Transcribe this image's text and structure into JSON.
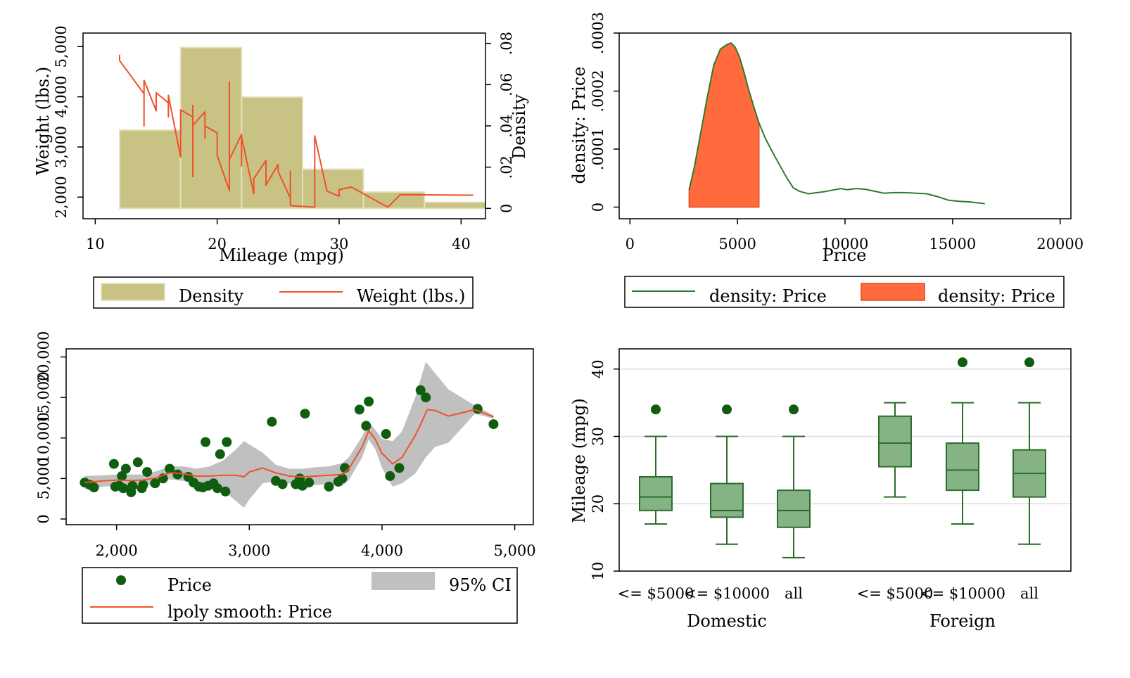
{
  "colors": {
    "hist_fill": "#c8c285",
    "hist_stroke": "#e5e1bd",
    "weight_line": "#f0502a",
    "density_line": "#2d7a2d",
    "density_fill": "#ff6b3d",
    "scatter_point": "#0f5e0f",
    "ci_fill": "#c0c0c0",
    "lpoly_line": "#f0502a",
    "box_fill": "#86b386",
    "box_stroke": "#2a6e2a",
    "grid": "#dedede"
  },
  "chart_data": [
    {
      "id": "hist-weight",
      "type": "bar",
      "xlabel": "Mileage (mpg)",
      "ylabel": "Weight (lbs.)",
      "y2label": "Density",
      "xlim": [
        9,
        42
      ],
      "xticks": [
        {
          "v": 10,
          "l": "10"
        },
        {
          "v": 20,
          "l": "20"
        },
        {
          "v": 30,
          "l": "30"
        },
        {
          "v": 40,
          "l": "40"
        }
      ],
      "ylim": [
        1570,
        5270
      ],
      "yticks": [
        {
          "v": 2000,
          "l": "2,000"
        },
        {
          "v": 3000,
          "l": "3,000"
        },
        {
          "v": 4000,
          "l": "4,000"
        },
        {
          "v": 5000,
          "l": "5,000"
        }
      ],
      "y2lim": [
        -0.005,
        0.085
      ],
      "y2ticks": [
        {
          "v": 0,
          "l": "0"
        },
        {
          "v": 0.02,
          "l": ".02"
        },
        {
          "v": 0.04,
          "l": ".04"
        },
        {
          "v": 0.06,
          "l": ".06"
        },
        {
          "v": 0.08,
          "l": ".08"
        }
      ],
      "bins": [
        {
          "x0": 12,
          "x1": 17,
          "density": 0.038
        },
        {
          "x0": 17,
          "x1": 22,
          "density": 0.078
        },
        {
          "x0": 22,
          "x1": 27,
          "density": 0.054
        },
        {
          "x0": 27,
          "x1": 32,
          "density": 0.019
        },
        {
          "x0": 32,
          "x1": 37,
          "density": 0.008
        },
        {
          "x0": 37,
          "x1": 42,
          "density": 0.003
        }
      ],
      "weight_line": {
        "name": "Weight (lbs.)",
        "points": [
          [
            12,
            4840
          ],
          [
            12,
            4720
          ],
          [
            14,
            4060
          ],
          [
            14,
            3420
          ],
          [
            14,
            4330
          ],
          [
            15,
            3720
          ],
          [
            15,
            4080
          ],
          [
            16,
            3880
          ],
          [
            16,
            3600
          ],
          [
            16,
            4030
          ],
          [
            17,
            2800
          ],
          [
            17,
            3740
          ],
          [
            18,
            3600
          ],
          [
            18,
            3830
          ],
          [
            18,
            3670
          ],
          [
            18,
            2410
          ],
          [
            18,
            3430
          ],
          [
            19,
            3700
          ],
          [
            19,
            3170
          ],
          [
            19,
            3420
          ],
          [
            20,
            3280
          ],
          [
            20,
            2830
          ],
          [
            21,
            2130
          ],
          [
            21,
            4290
          ],
          [
            21,
            2750
          ],
          [
            22,
            3250
          ],
          [
            22,
            2620
          ],
          [
            22,
            3200
          ],
          [
            23,
            2070
          ],
          [
            23,
            2370
          ],
          [
            24,
            2730
          ],
          [
            24,
            2610
          ],
          [
            24,
            2240
          ],
          [
            25,
            2650
          ],
          [
            25,
            2510
          ],
          [
            26,
            1980
          ],
          [
            26,
            2520
          ],
          [
            26,
            1830
          ],
          [
            28,
            1800
          ],
          [
            28,
            3220
          ],
          [
            29,
            2120
          ],
          [
            30,
            2020
          ],
          [
            30,
            2150
          ],
          [
            31,
            2200
          ],
          [
            34,
            1800
          ],
          [
            35,
            2050
          ],
          [
            41,
            2040
          ]
        ]
      },
      "legend": [
        {
          "key": "hist",
          "label": "Density"
        },
        {
          "key": "line",
          "label": "Weight (lbs.)"
        }
      ]
    },
    {
      "id": "kdensity-price",
      "type": "area",
      "xlabel": "Price",
      "ylabel": "density: Price",
      "xlim": [
        -500,
        20500
      ],
      "xticks": [
        {
          "v": 0,
          "l": "0"
        },
        {
          "v": 5000,
          "l": "5000"
        },
        {
          "v": 10000,
          "l": "10000"
        },
        {
          "v": 15000,
          "l": "15000"
        },
        {
          "v": 20000,
          "l": "20000"
        }
      ],
      "ylim": [
        -2e-05,
        0.0003
      ],
      "yticks": [
        {
          "v": 0,
          "l": "0"
        },
        {
          "v": 0.0001,
          "l": ".0001"
        },
        {
          "v": 0.0002,
          "l": ".0002"
        },
        {
          "v": 0.0003,
          "l": ".0003"
        }
      ],
      "shade_range": [
        2750,
        6000
      ],
      "curve": [
        [
          2750,
          3e-05
        ],
        [
          3000,
          7e-05
        ],
        [
          3300,
          0.00013
        ],
        [
          3600,
          0.00019
        ],
        [
          3900,
          0.000245
        ],
        [
          4200,
          0.000272
        ],
        [
          4500,
          0.00028
        ],
        [
          4700,
          0.000283
        ],
        [
          4900,
          0.000275
        ],
        [
          5100,
          0.000258
        ],
        [
          5300,
          0.000233
        ],
        [
          5500,
          0.000205
        ],
        [
          5800,
          0.000168
        ],
        [
          6000,
          0.000145
        ],
        [
          6300,
          0.000118
        ],
        [
          6700,
          9e-05
        ],
        [
          7000,
          7e-05
        ],
        [
          7300,
          5e-05
        ],
        [
          7600,
          3.3e-05
        ],
        [
          7900,
          2.7e-05
        ],
        [
          8300,
          2.3e-05
        ],
        [
          8700,
          2.5e-05
        ],
        [
          9100,
          2.7e-05
        ],
        [
          9500,
          3e-05
        ],
        [
          9800,
          3.2e-05
        ],
        [
          10100,
          3e-05
        ],
        [
          10500,
          3.2e-05
        ],
        [
          10900,
          3.1e-05
        ],
        [
          11300,
          2.8e-05
        ],
        [
          11800,
          2.4e-05
        ],
        [
          12300,
          2.5e-05
        ],
        [
          12800,
          2.5e-05
        ],
        [
          13300,
          2.4e-05
        ],
        [
          13800,
          2.3e-05
        ],
        [
          14300,
          1.8e-05
        ],
        [
          14800,
          1.2e-05
        ],
        [
          15300,
          1e-05
        ],
        [
          15800,
          9e-06
        ],
        [
          16500,
          6e-06
        ]
      ],
      "legend": [
        {
          "key": "line",
          "label": "density: Price"
        },
        {
          "key": "area",
          "label": "density: Price"
        }
      ]
    },
    {
      "id": "lpoly-price",
      "type": "scatter",
      "xlabel": "",
      "ylabel": "",
      "xlim": [
        1620,
        5140
      ],
      "xticks": [
        {
          "v": 2000,
          "l": "2,000"
        },
        {
          "v": 3000,
          "l": "3,000"
        },
        {
          "v": 4000,
          "l": "4,000"
        },
        {
          "v": 5000,
          "l": "5,000"
        }
      ],
      "ylim": [
        -700,
        21000
      ],
      "yticks": [
        {
          "v": 0,
          "l": "0"
        },
        {
          "v": 5000,
          "l": "5,000"
        },
        {
          "v": 10000,
          "l": "10,000"
        },
        {
          "v": 15000,
          "l": "15,000"
        },
        {
          "v": 20000,
          "l": "20,000"
        }
      ],
      "points": [
        [
          1760,
          4500
        ],
        [
          1800,
          4200
        ],
        [
          1830,
          3900
        ],
        [
          1980,
          6800
        ],
        [
          1990,
          4000
        ],
        [
          2020,
          4100
        ],
        [
          2040,
          5300
        ],
        [
          2050,
          3800
        ],
        [
          2070,
          6200
        ],
        [
          2110,
          3300
        ],
        [
          2120,
          4100
        ],
        [
          2160,
          7000
        ],
        [
          2190,
          3800
        ],
        [
          2200,
          4200
        ],
        [
          2230,
          5800
        ],
        [
          2290,
          4400
        ],
        [
          2350,
          5000
        ],
        [
          2400,
          6200
        ],
        [
          2460,
          5500
        ],
        [
          2540,
          5200
        ],
        [
          2580,
          4500
        ],
        [
          2620,
          4000
        ],
        [
          2650,
          3900
        ],
        [
          2670,
          9500
        ],
        [
          2690,
          4100
        ],
        [
          2730,
          4400
        ],
        [
          2760,
          3800
        ],
        [
          2780,
          8000
        ],
        [
          2820,
          3400
        ],
        [
          2830,
          9500
        ],
        [
          3170,
          12000
        ],
        [
          3200,
          4700
        ],
        [
          3250,
          4300
        ],
        [
          3350,
          4300
        ],
        [
          3380,
          5000
        ],
        [
          3400,
          4100
        ],
        [
          3420,
          13000
        ],
        [
          3450,
          4500
        ],
        [
          3600,
          4000
        ],
        [
          3670,
          4600
        ],
        [
          3700,
          5000
        ],
        [
          3720,
          6300
        ],
        [
          3830,
          13500
        ],
        [
          3880,
          11500
        ],
        [
          3900,
          14500
        ],
        [
          4030,
          10500
        ],
        [
          4060,
          5300
        ],
        [
          4130,
          6300
        ],
        [
          4290,
          15900
        ],
        [
          4330,
          15000
        ],
        [
          4720,
          13600
        ],
        [
          4840,
          11700
        ]
      ],
      "smooth": [
        [
          1760,
          4500
        ],
        [
          1900,
          4700
        ],
        [
          2000,
          4800
        ],
        [
          2100,
          4750
        ],
        [
          2200,
          4800
        ],
        [
          2300,
          5100
        ],
        [
          2400,
          5700
        ],
        [
          2500,
          5600
        ],
        [
          2600,
          5300
        ],
        [
          2700,
          5300
        ],
        [
          2800,
          5400
        ],
        [
          2900,
          5400
        ],
        [
          2960,
          5200
        ],
        [
          3000,
          5800
        ],
        [
          3100,
          6300
        ],
        [
          3200,
          5700
        ],
        [
          3300,
          5300
        ],
        [
          3400,
          5200
        ],
        [
          3500,
          5300
        ],
        [
          3600,
          5400
        ],
        [
          3700,
          5500
        ],
        [
          3750,
          6200
        ],
        [
          3850,
          8900
        ],
        [
          3900,
          10900
        ],
        [
          3950,
          9800
        ],
        [
          4000,
          8100
        ],
        [
          4080,
          6800
        ],
        [
          4150,
          7600
        ],
        [
          4250,
          10300
        ],
        [
          4300,
          12000
        ],
        [
          4340,
          13500
        ],
        [
          4400,
          13400
        ],
        [
          4500,
          12700
        ],
        [
          4700,
          13500
        ],
        [
          4840,
          12600
        ]
      ],
      "ci_upper": [
        [
          1760,
          5300
        ],
        [
          1900,
          5400
        ],
        [
          2000,
          5500
        ],
        [
          2100,
          5500
        ],
        [
          2200,
          5500
        ],
        [
          2300,
          5900
        ],
        [
          2400,
          6500
        ],
        [
          2500,
          6500
        ],
        [
          2600,
          6200
        ],
        [
          2700,
          6500
        ],
        [
          2800,
          7200
        ],
        [
          2900,
          8600
        ],
        [
          2960,
          9600
        ],
        [
          3000,
          9200
        ],
        [
          3100,
          8200
        ],
        [
          3200,
          6700
        ],
        [
          3300,
          6200
        ],
        [
          3400,
          6200
        ],
        [
          3500,
          6400
        ],
        [
          3600,
          6500
        ],
        [
          3700,
          6900
        ],
        [
          3750,
          7600
        ],
        [
          3850,
          10200
        ],
        [
          3900,
          12000
        ],
        [
          3950,
          11000
        ],
        [
          4000,
          9900
        ],
        [
          4080,
          9600
        ],
        [
          4150,
          10800
        ],
        [
          4250,
          15000
        ],
        [
          4330,
          19400
        ],
        [
          4400,
          18000
        ],
        [
          4500,
          16000
        ],
        [
          4700,
          14000
        ],
        [
          4840,
          12800
        ]
      ],
      "ci_lower": [
        [
          1760,
          3700
        ],
        [
          1900,
          4000
        ],
        [
          2000,
          4100
        ],
        [
          2100,
          4000
        ],
        [
          2200,
          4100
        ],
        [
          2300,
          4300
        ],
        [
          2400,
          4900
        ],
        [
          2500,
          4700
        ],
        [
          2600,
          4400
        ],
        [
          2700,
          4100
        ],
        [
          2800,
          3600
        ],
        [
          2900,
          2200
        ],
        [
          2960,
          1400
        ],
        [
          3000,
          2400
        ],
        [
          3100,
          4400
        ],
        [
          3200,
          4700
        ],
        [
          3300,
          4400
        ],
        [
          3400,
          4200
        ],
        [
          3500,
          4200
        ],
        [
          3600,
          4300
        ],
        [
          3700,
          4100
        ],
        [
          3750,
          4800
        ],
        [
          3850,
          7600
        ],
        [
          3900,
          9800
        ],
        [
          3950,
          8600
        ],
        [
          4000,
          6300
        ],
        [
          4080,
          4000
        ],
        [
          4150,
          4400
        ],
        [
          4250,
          5600
        ],
        [
          4330,
          7600
        ],
        [
          4400,
          8900
        ],
        [
          4500,
          9400
        ],
        [
          4700,
          13000
        ],
        [
          4840,
          12400
        ]
      ],
      "legend": [
        {
          "key": "point",
          "label": "Price"
        },
        {
          "key": "area",
          "label": "95% CI"
        },
        {
          "key": "line",
          "label": "lpoly smooth: Price"
        }
      ]
    },
    {
      "id": "box-mpg",
      "type": "box",
      "xlabel": "",
      "ylabel": "Mileage (mpg)",
      "ylim": [
        10,
        43
      ],
      "yticks": [
        {
          "v": 10,
          "l": "10"
        },
        {
          "v": 20,
          "l": "20"
        },
        {
          "v": 30,
          "l": "30"
        },
        {
          "v": 40,
          "l": "40"
        }
      ],
      "groups": [
        {
          "name": "Domestic",
          "boxes": [
            {
              "label": "<= $5000",
              "whisker_low": 17,
              "q1": 19,
              "median": 21,
              "q3": 24,
              "whisker_high": 30,
              "outliers": [
                34
              ]
            },
            {
              "label": "<= $10000",
              "whisker_low": 14,
              "q1": 18,
              "median": 19,
              "q3": 23,
              "whisker_high": 30,
              "outliers": [
                34
              ]
            },
            {
              "label": "all",
              "whisker_low": 12,
              "q1": 16.5,
              "median": 19,
              "q3": 22,
              "whisker_high": 30,
              "outliers": [
                34
              ]
            }
          ]
        },
        {
          "name": "Foreign",
          "boxes": [
            {
              "label": "<= $5000",
              "whisker_low": 21,
              "q1": 25.5,
              "median": 29,
              "q3": 33,
              "whisker_high": 35,
              "outliers": []
            },
            {
              "label": "<= $10000",
              "whisker_low": 17,
              "q1": 22,
              "median": 25,
              "q3": 29,
              "whisker_high": 35,
              "outliers": [
                41
              ]
            },
            {
              "label": "all",
              "whisker_low": 14,
              "q1": 21,
              "median": 24.5,
              "q3": 28,
              "whisker_high": 35,
              "outliers": [
                41
              ]
            }
          ]
        }
      ]
    }
  ]
}
